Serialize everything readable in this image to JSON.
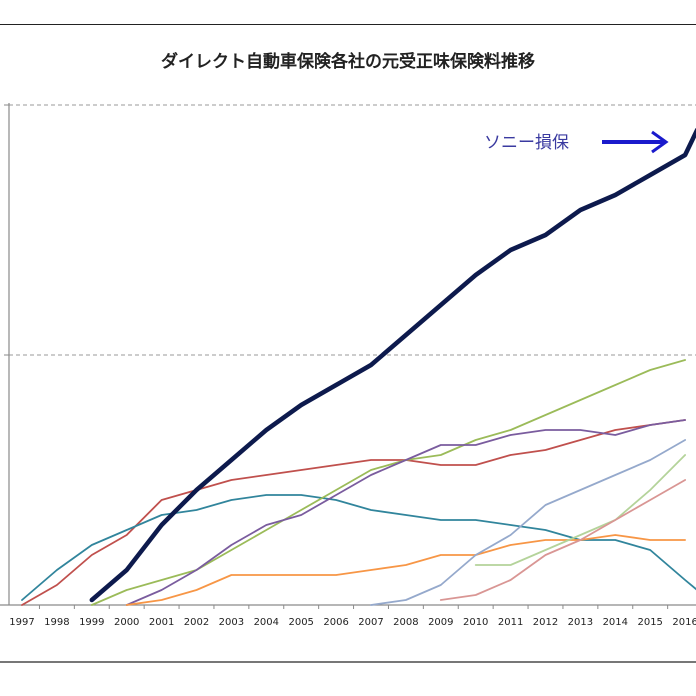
{
  "chart_data": {
    "type": "line",
    "title": "ダイレクト自動車保険各社の元受正味保険料推移",
    "xlabel": "",
    "ylabel": "",
    "y_tick_labels_shown": false,
    "y_scale_note": "relative units (no y-axis labels shown); middle gridline = 50, top gridline = 100",
    "ylim": [
      0,
      100
    ],
    "grid": "horizontal dashed",
    "legend": "none",
    "x": [
      "1997",
      "1998",
      "1999",
      "2000",
      "2001",
      "2002",
      "2003",
      "2004",
      "2005",
      "2006",
      "2007",
      "2008",
      "2009",
      "2010",
      "2011",
      "2012",
      "2013",
      "2014",
      "2015",
      "2016"
    ],
    "annotations": [
      {
        "text": "ソニー損保",
        "arrow": "right",
        "points_to": "Sony (navy) series",
        "color": "#3a3aa0",
        "arrow_color": "#1a1acc"
      }
    ],
    "series": [
      {
        "name": "ソニー損保",
        "color": "#0d1a4d",
        "width": "thick",
        "values": [
          null,
          null,
          1,
          7,
          16,
          23,
          29,
          35,
          40,
          44,
          48,
          54,
          60,
          66,
          71,
          74,
          79,
          82,
          86,
          90
        ]
      },
      {
        "name": "series-red",
        "color": "#c0504d",
        "values": [
          0,
          4,
          10,
          14,
          21,
          23,
          25,
          26,
          27,
          28,
          29,
          29,
          28,
          28,
          30,
          31,
          33,
          35,
          36,
          37
        ]
      },
      {
        "name": "series-teal",
        "color": "#31859c",
        "values": [
          1,
          7,
          12,
          15,
          18,
          19,
          21,
          22,
          22,
          21,
          19,
          18,
          17,
          17,
          16,
          15,
          13,
          13,
          11,
          5
        ]
      },
      {
        "name": "series-olive",
        "color": "#9bbb59",
        "values": [
          null,
          null,
          0,
          3,
          5,
          7,
          11,
          15,
          19,
          23,
          27,
          29,
          30,
          33,
          35,
          38,
          41,
          44,
          47,
          49
        ]
      },
      {
        "name": "series-purple",
        "color": "#7a5c9e",
        "values": [
          null,
          null,
          null,
          0,
          3,
          7,
          12,
          16,
          18,
          22,
          26,
          29,
          32,
          32,
          34,
          35,
          35,
          34,
          36,
          37
        ]
      },
      {
        "name": "series-orange",
        "color": "#f79646",
        "values": [
          null,
          null,
          null,
          0,
          1,
          3,
          6,
          6,
          6,
          6,
          7,
          8,
          10,
          10,
          12,
          13,
          13,
          14,
          13,
          13
        ]
      },
      {
        "name": "series-steelblue",
        "color": "#95a9cc",
        "values": [
          null,
          null,
          null,
          null,
          null,
          null,
          null,
          null,
          null,
          null,
          0,
          1,
          4,
          10,
          14,
          20,
          23,
          26,
          29,
          33
        ]
      },
      {
        "name": "series-lightgreen",
        "color": "#b4d39a",
        "values": [
          null,
          null,
          null,
          null,
          null,
          null,
          null,
          null,
          null,
          null,
          null,
          null,
          null,
          8,
          8,
          11,
          14,
          17,
          23,
          30
        ]
      },
      {
        "name": "series-pink",
        "color": "#d99694",
        "values": [
          null,
          null,
          null,
          null,
          null,
          null,
          null,
          null,
          null,
          null,
          null,
          null,
          1,
          2,
          5,
          10,
          13,
          17,
          21,
          25
        ]
      }
    ]
  }
}
